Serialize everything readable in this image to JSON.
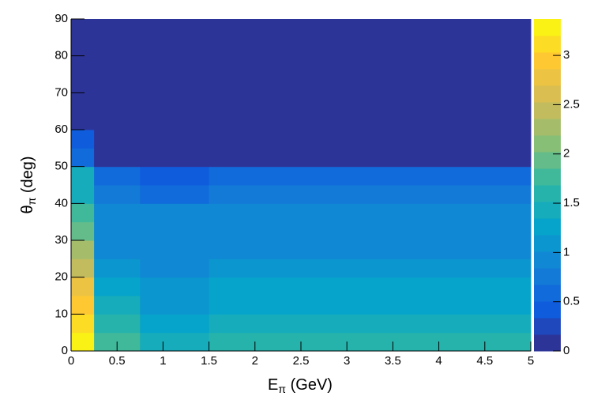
{
  "chart_data": {
    "type": "heatmap",
    "x_label": [
      "E",
      "π",
      " (GeV)"
    ],
    "y_label": [
      "θ",
      "π",
      " (deg)"
    ],
    "xbins": [
      0,
      0.25,
      0.75,
      1.5,
      5
    ],
    "ybins": [
      0,
      5,
      10,
      15,
      20,
      25,
      30,
      35,
      40,
      45,
      50,
      55,
      60,
      65,
      70,
      75,
      80,
      85,
      90
    ],
    "z": [
      [
        3.3,
        1.75,
        1.45,
        1.65
      ],
      [
        3.1,
        1.55,
        1.3,
        1.5
      ],
      [
        2.95,
        1.35,
        1.1,
        1.3
      ],
      [
        2.8,
        1.3,
        1.05,
        1.25
      ],
      [
        2.4,
        1.15,
        0.95,
        1.15
      ],
      [
        2.2,
        1.0,
        0.85,
        1.0
      ],
      [
        2.0,
        1.0,
        1.0,
        1.0
      ],
      [
        1.75,
        0.85,
        0.85,
        0.85
      ],
      [
        1.45,
        0.75,
        0.65,
        0.75
      ],
      [
        1.35,
        0.55,
        0.4,
        0.55
      ],
      [
        0.55,
        0,
        0,
        0
      ],
      [
        0.5,
        0,
        0,
        0
      ],
      [
        0,
        0,
        0,
        0
      ],
      [
        0,
        0,
        0,
        0
      ],
      [
        0,
        0,
        0,
        0
      ],
      [
        0,
        0,
        0,
        0
      ],
      [
        0,
        0,
        0,
        0
      ],
      [
        0,
        0,
        0,
        0
      ]
    ],
    "xlim": [
      0,
      5
    ],
    "ylim": [
      0,
      90
    ],
    "zlim": [
      0,
      3.37
    ],
    "xticks": [
      0,
      0.5,
      1,
      1.5,
      2,
      2.5,
      3,
      3.5,
      4,
      4.5,
      5
    ],
    "yticks": [
      0,
      10,
      20,
      30,
      40,
      50,
      60,
      70,
      80,
      90
    ],
    "zticks": [
      0,
      0.5,
      1,
      1.5,
      2,
      2.5,
      3
    ],
    "contours": 20,
    "colorscale": [
      "#352a87",
      "#0f5cdd",
      "#1481d6",
      "#06a4ca",
      "#2eb7a4",
      "#87bf77",
      "#d1bb59",
      "#fec832",
      "#f9fb0e"
    ]
  }
}
